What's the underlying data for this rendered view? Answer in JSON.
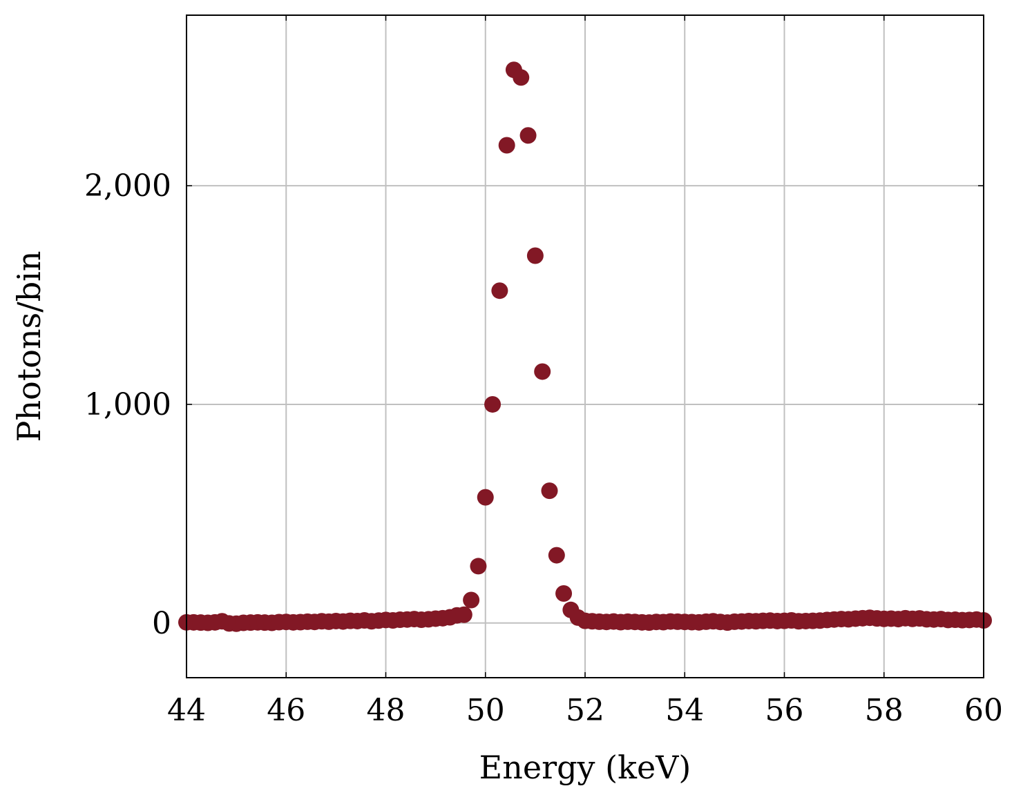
{
  "chart_data": {
    "type": "scatter",
    "title": "",
    "xlabel": "Energy (keV)",
    "ylabel": "Photons/bin",
    "xlim": [
      44,
      60
    ],
    "ylim": [
      -250,
      2780
    ],
    "xticks": [
      44,
      46,
      48,
      50,
      52,
      54,
      56,
      58,
      60
    ],
    "xtick_labels": [
      "44",
      "46",
      "48",
      "50",
      "52",
      "54",
      "56",
      "58",
      "60"
    ],
    "yticks": [
      0,
      1000,
      2000
    ],
    "ytick_labels": [
      "0",
      "1,000",
      "2,000"
    ],
    "grid": true,
    "marker_color": "#821825",
    "series": [
      {
        "name": "Photons",
        "x": [
          44.0,
          44.143,
          44.286,
          44.429,
          44.571,
          44.714,
          44.857,
          45.0,
          45.143,
          45.286,
          45.429,
          45.571,
          45.714,
          45.857,
          46.0,
          46.143,
          46.286,
          46.429,
          46.571,
          46.714,
          46.857,
          47.0,
          47.143,
          47.286,
          47.429,
          47.571,
          47.714,
          47.857,
          48.0,
          48.143,
          48.286,
          48.429,
          48.571,
          48.714,
          48.857,
          49.0,
          49.143,
          49.286,
          49.429,
          49.571,
          49.714,
          49.857,
          50.0,
          50.143,
          50.286,
          50.429,
          50.571,
          50.714,
          50.857,
          51.0,
          51.143,
          51.286,
          51.429,
          51.571,
          51.714,
          51.857,
          52.0,
          52.143,
          52.286,
          52.429,
          52.571,
          52.714,
          52.857,
          53.0,
          53.143,
          53.286,
          53.429,
          53.571,
          53.714,
          53.857,
          54.0,
          54.143,
          54.286,
          54.429,
          54.571,
          54.714,
          54.857,
          55.0,
          55.143,
          55.286,
          55.429,
          55.571,
          55.714,
          55.857,
          56.0,
          56.143,
          56.286,
          56.429,
          56.571,
          56.714,
          56.857,
          57.0,
          57.143,
          57.286,
          57.429,
          57.571,
          57.714,
          57.857,
          58.0,
          58.143,
          58.286,
          58.429,
          58.571,
          58.714,
          58.857,
          59.0,
          59.143,
          59.286,
          59.429,
          59.571,
          59.714,
          59.857,
          60.0
        ],
        "y": [
          3,
          3,
          2,
          1,
          3,
          8,
          -2,
          -3,
          1,
          2,
          3,
          2,
          1,
          4,
          5,
          3,
          4,
          6,
          5,
          8,
          6,
          9,
          7,
          10,
          9,
          12,
          8,
          11,
          14,
          12,
          15,
          16,
          18,
          15,
          17,
          20,
          22,
          26,
          35,
          38,
          105,
          260,
          575,
          1000,
          1520,
          2185,
          2530,
          2495,
          2230,
          1680,
          1150,
          605,
          310,
          135,
          60,
          25,
          10,
          8,
          6,
          5,
          7,
          4,
          6,
          5,
          3,
          2,
          5,
          4,
          7,
          6,
          5,
          4,
          3,
          6,
          8,
          5,
          2,
          6,
          7,
          9,
          8,
          10,
          11,
          9,
          10,
          12,
          8,
          9,
          10,
          11,
          14,
          16,
          18,
          17,
          20,
          22,
          24,
          21,
          19,
          20,
          18,
          22,
          19,
          21,
          17,
          16,
          18,
          14,
          15,
          13,
          14,
          16,
          12
        ]
      }
    ]
  }
}
